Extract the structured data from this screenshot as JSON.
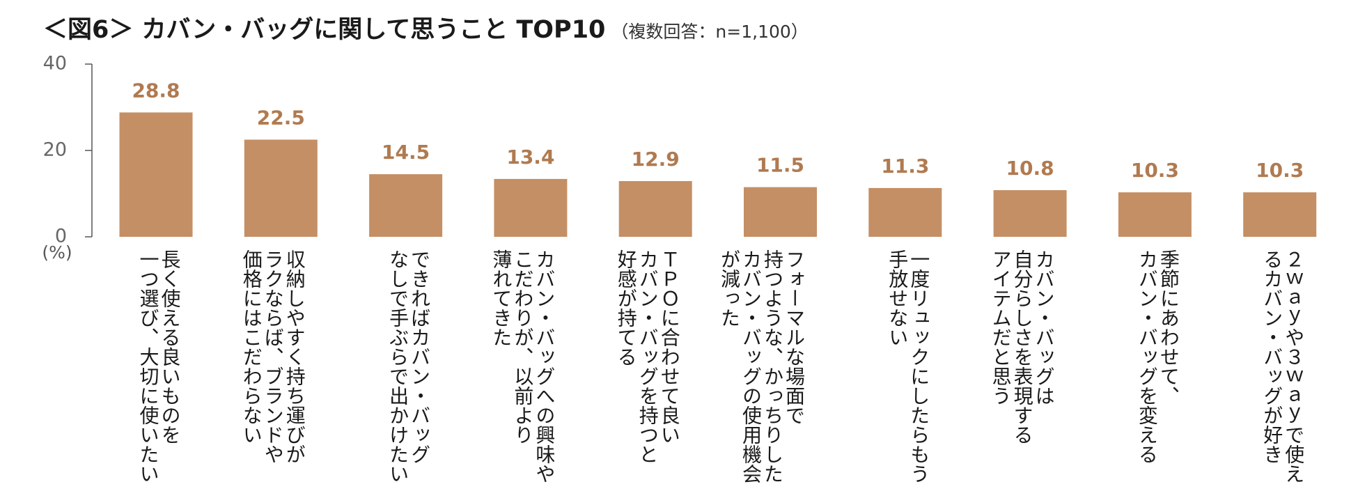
{
  "title": {
    "main": "＜図6＞ カバン・バッグに関して思うこと TOP10",
    "sub": "（複数回答：n=1,100）"
  },
  "chart_data": {
    "type": "bar",
    "ylabel": "(%)",
    "ylim": [
      0,
      40
    ],
    "yticks": [
      0,
      20,
      40
    ],
    "grid": false,
    "legend": "none",
    "bar_color": "#c48f65",
    "label_color": "#b07a50",
    "categories": [
      [
        "長く使える良いものを",
        "一つ選び、大切に使いたい"
      ],
      [
        "収納しやすく持ち運びが",
        "ラクならば、ブランドや",
        "価格にはこだわらない"
      ],
      [
        "できればカバン・バッグ",
        "なしで手ぶらで出かけたい"
      ],
      [
        "カバン・バッグへの興味や",
        "こだわりが、以前より",
        "薄れてきた"
      ],
      [
        "ＴＰＯに合わせて良い",
        "カバン・バッグを持つと",
        "好感が持てる"
      ],
      [
        "フォーマルな場面で",
        "持つような、かっちりした",
        "カバン・バッグの使用機会",
        "が減った"
      ],
      [
        "一度リュックにしたらもう",
        "手放せない"
      ],
      [
        "カバン・バッグは",
        "自分らしさを表現する",
        "アイテムだと思う"
      ],
      [
        "季節にあわせて、",
        "カバン・バッグを変える"
      ],
      [
        "２ｗａｙや３ｗａｙで使え",
        "るカバン・バッグが好き"
      ]
    ],
    "values": [
      28.8,
      22.5,
      14.5,
      13.4,
      12.9,
      11.5,
      11.3,
      10.8,
      10.3,
      10.3
    ],
    "value_labels": [
      "28.8",
      "22.5",
      "14.5",
      "13.4",
      "12.9",
      "11.5",
      "11.3",
      "10.8",
      "10.3",
      "10.3"
    ]
  }
}
